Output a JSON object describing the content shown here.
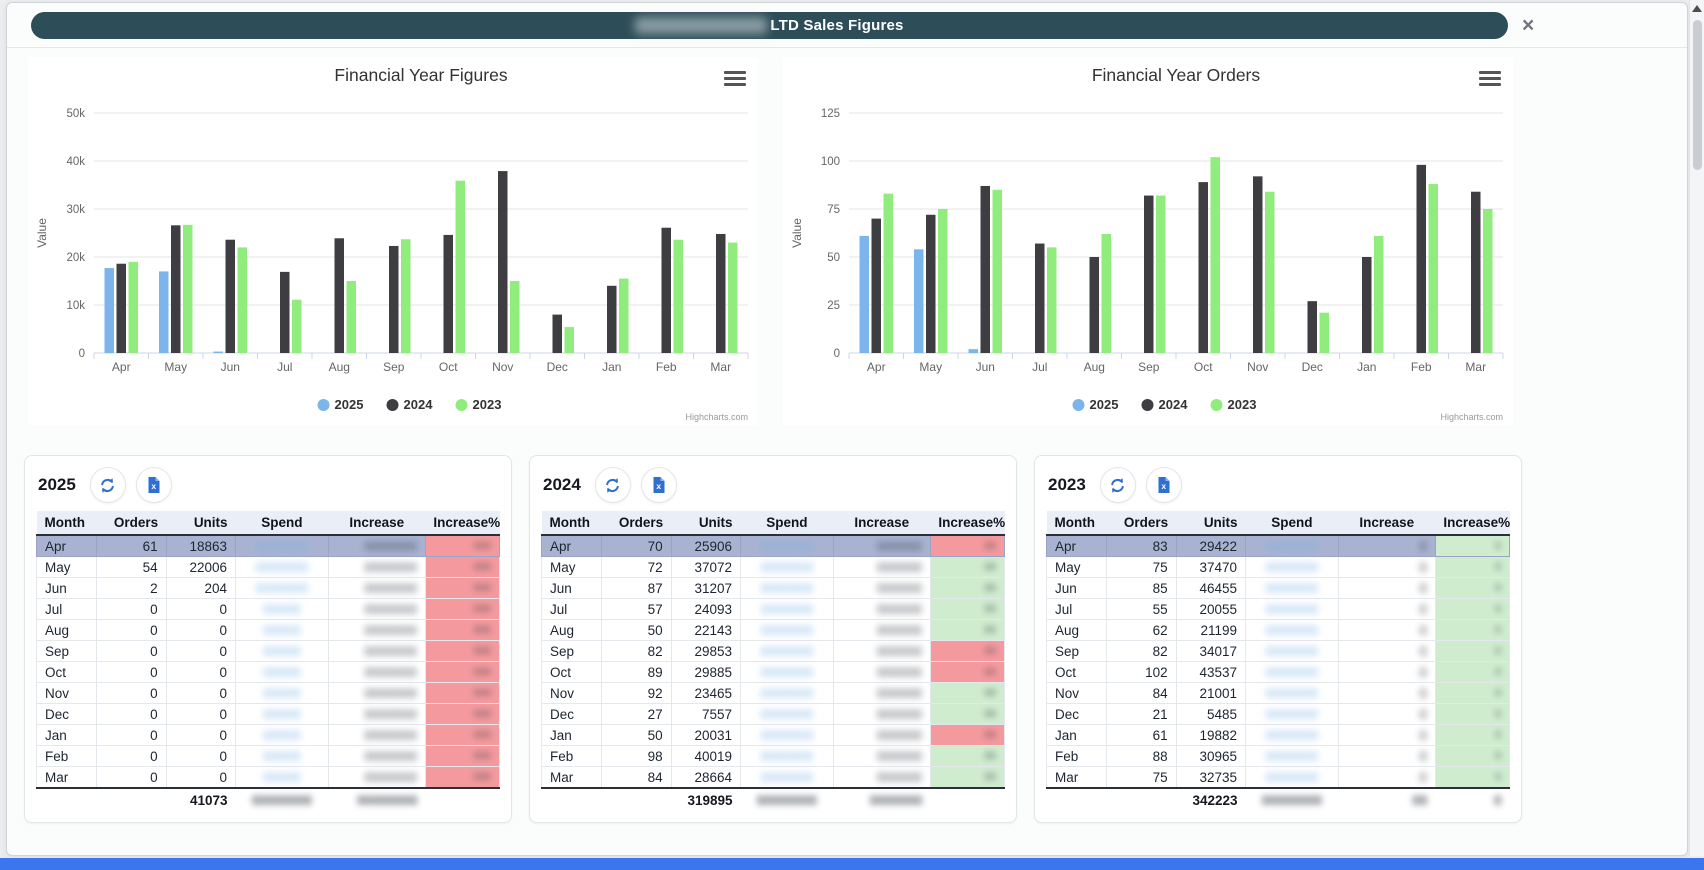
{
  "window": {
    "title": "LTD Sales Figures",
    "close": "×"
  },
  "chart_data": [
    {
      "type": "bar",
      "title": "Financial Year Figures",
      "ylabel": "Value",
      "ylim": [
        0,
        50000
      ],
      "ytick_step": 10000,
      "grid": true,
      "legend_position": "bottom",
      "credit": "Highcharts.com",
      "categories": [
        "Apr",
        "May",
        "Jun",
        "Jul",
        "Aug",
        "Sep",
        "Oct",
        "Nov",
        "Dec",
        "Jan",
        "Feb",
        "Mar"
      ],
      "series": [
        {
          "name": "2025",
          "color": "#7cb5ec",
          "values": [
            17700,
            17000,
            300,
            0,
            0,
            0,
            0,
            0,
            0,
            0,
            0,
            0
          ]
        },
        {
          "name": "2024",
          "color": "#3d3d42",
          "values": [
            18600,
            26600,
            23600,
            16900,
            23900,
            22300,
            24600,
            37900,
            8000,
            14000,
            26100,
            24800
          ]
        },
        {
          "name": "2023",
          "color": "#90ed7d",
          "values": [
            19000,
            26700,
            22000,
            11100,
            15000,
            23700,
            35900,
            15000,
            5400,
            15500,
            23600,
            23000
          ]
        }
      ]
    },
    {
      "type": "bar",
      "title": "Financial Year Orders",
      "ylabel": "Value",
      "ylim": [
        0,
        125
      ],
      "ytick_step": 25,
      "grid": true,
      "legend_position": "bottom",
      "credit": "Highcharts.com",
      "categories": [
        "Apr",
        "May",
        "Jun",
        "Jul",
        "Aug",
        "Sep",
        "Oct",
        "Nov",
        "Dec",
        "Jan",
        "Feb",
        "Mar"
      ],
      "series": [
        {
          "name": "2025",
          "color": "#7cb5ec",
          "values": [
            61,
            54,
            2,
            0,
            0,
            0,
            0,
            0,
            0,
            0,
            0,
            0
          ]
        },
        {
          "name": "2024",
          "color": "#3d3d42",
          "values": [
            70,
            72,
            87,
            57,
            50,
            82,
            89,
            92,
            27,
            50,
            98,
            84
          ]
        },
        {
          "name": "2023",
          "color": "#90ed7d",
          "values": [
            83,
            75,
            85,
            55,
            62,
            82,
            102,
            84,
            21,
            61,
            88,
            75
          ]
        }
      ]
    }
  ],
  "table_columns": [
    "Month",
    "Orders",
    "Units",
    "Spend",
    "Increase",
    "Increase%"
  ],
  "tables": [
    {
      "year": "2025",
      "highlight_row": 0,
      "rows": [
        {
          "month": "Apr",
          "orders": 61,
          "units": 18863,
          "pct_color": "red"
        },
        {
          "month": "May",
          "orders": 54,
          "units": 22006,
          "pct_color": "red"
        },
        {
          "month": "Jun",
          "orders": 2,
          "units": 204,
          "pct_color": "red"
        },
        {
          "month": "Jul",
          "orders": 0,
          "units": 0,
          "pct_color": "red"
        },
        {
          "month": "Aug",
          "orders": 0,
          "units": 0,
          "pct_color": "red"
        },
        {
          "month": "Sep",
          "orders": 0,
          "units": 0,
          "pct_color": "red"
        },
        {
          "month": "Oct",
          "orders": 0,
          "units": 0,
          "pct_color": "red"
        },
        {
          "month": "Nov",
          "orders": 0,
          "units": 0,
          "pct_color": "red"
        },
        {
          "month": "Dec",
          "orders": 0,
          "units": 0,
          "pct_color": "red"
        },
        {
          "month": "Jan",
          "orders": 0,
          "units": 0,
          "pct_color": "red"
        },
        {
          "month": "Feb",
          "orders": 0,
          "units": 0,
          "pct_color": "red"
        },
        {
          "month": "Mar",
          "orders": 0,
          "units": 0,
          "pct_color": "red"
        }
      ],
      "totals": {
        "units": "41073",
        "pct": ""
      },
      "masked": {
        "spend": "0000000",
        "spend_zero": "00000",
        "increase": "0000000",
        "pct": "000",
        "spend_total": "00000000",
        "increase_total": "00000000"
      }
    },
    {
      "year": "2024",
      "highlight_row": 0,
      "rows": [
        {
          "month": "Apr",
          "orders": 70,
          "units": 25906,
          "pct_color": "red"
        },
        {
          "month": "May",
          "orders": 72,
          "units": 37072,
          "pct_color": "green"
        },
        {
          "month": "Jun",
          "orders": 87,
          "units": 31207,
          "pct_color": "green"
        },
        {
          "month": "Jul",
          "orders": 57,
          "units": 24093,
          "pct_color": "green"
        },
        {
          "month": "Aug",
          "orders": 50,
          "units": 22143,
          "pct_color": "green"
        },
        {
          "month": "Sep",
          "orders": 82,
          "units": 29853,
          "pct_color": "red"
        },
        {
          "month": "Oct",
          "orders": 89,
          "units": 29885,
          "pct_color": "red"
        },
        {
          "month": "Nov",
          "orders": 92,
          "units": 23465,
          "pct_color": "green"
        },
        {
          "month": "Dec",
          "orders": 27,
          "units": 7557,
          "pct_color": "green"
        },
        {
          "month": "Jan",
          "orders": 50,
          "units": 20031,
          "pct_color": "red"
        },
        {
          "month": "Feb",
          "orders": 98,
          "units": 40019,
          "pct_color": "green"
        },
        {
          "month": "Mar",
          "orders": 84,
          "units": 28664,
          "pct_color": "green"
        }
      ],
      "totals": {
        "units": "319895",
        "pct": ""
      },
      "masked": {
        "spend": "0000000",
        "spend_zero": "0000000",
        "increase": "000000",
        "pct": "00",
        "spend_total": "00000000",
        "increase_total": "0000000"
      }
    },
    {
      "year": "2023",
      "highlight_row": 0,
      "rows": [
        {
          "month": "Apr",
          "orders": 83,
          "units": 29422,
          "pct_color": "green"
        },
        {
          "month": "May",
          "orders": 75,
          "units": 37470,
          "pct_color": "green"
        },
        {
          "month": "Jun",
          "orders": 85,
          "units": 46455,
          "pct_color": "green"
        },
        {
          "month": "Jul",
          "orders": 55,
          "units": 20055,
          "pct_color": "green"
        },
        {
          "month": "Aug",
          "orders": 62,
          "units": 21199,
          "pct_color": "green"
        },
        {
          "month": "Sep",
          "orders": 82,
          "units": 34017,
          "pct_color": "green"
        },
        {
          "month": "Oct",
          "orders": 102,
          "units": 43537,
          "pct_color": "green"
        },
        {
          "month": "Nov",
          "orders": 84,
          "units": 21001,
          "pct_color": "green"
        },
        {
          "month": "Dec",
          "orders": 21,
          "units": 5485,
          "pct_color": "green"
        },
        {
          "month": "Jan",
          "orders": 61,
          "units": 19882,
          "pct_color": "green"
        },
        {
          "month": "Feb",
          "orders": 88,
          "units": 30965,
          "pct_color": "green"
        },
        {
          "month": "Mar",
          "orders": 75,
          "units": 32735,
          "pct_color": "green"
        }
      ],
      "totals": {
        "units": "342223",
        "pct": "0"
      },
      "masked": {
        "spend": "0000000",
        "spend_zero": "0000000",
        "increase": "0",
        "pct": "0",
        "spend_total": "00000000",
        "increase_total": "00"
      }
    }
  ]
}
